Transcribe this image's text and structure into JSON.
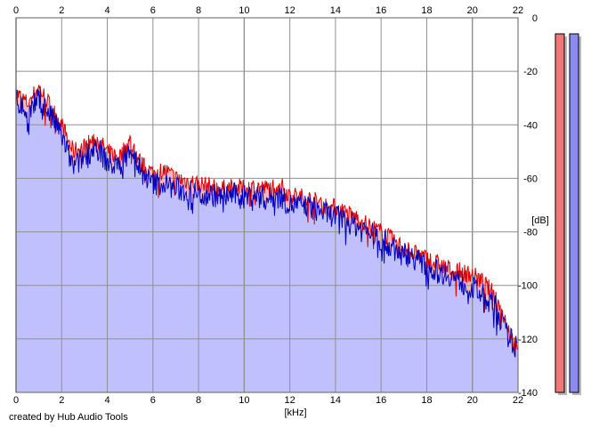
{
  "credit": "created by Hub Audio Tools",
  "chart_data": {
    "type": "area",
    "xlabel": "[kHz]",
    "ylabel": "[dB]",
    "xlim": [
      0,
      22
    ],
    "ylim": [
      -140,
      0
    ],
    "x_ticks": [
      "0",
      "2",
      "4",
      "6",
      "8",
      "10",
      "12",
      "14",
      "16",
      "18",
      "20",
      "22"
    ],
    "y_ticks": [
      "0",
      "-20",
      "-40",
      "-60",
      "-80",
      "-100",
      "-120",
      "-140"
    ],
    "grid": true,
    "colors": {
      "red": "#e00000",
      "blue": "#0000c0",
      "fill_blue": "#c0c0ff",
      "fill_red": "#f4b4c0",
      "meter_red": "#f07878",
      "meter_blue": "#8a8aef"
    },
    "series": [
      {
        "x": [
          0,
          0.5,
          1,
          1.5,
          2,
          2.5,
          3,
          3.5,
          4,
          4.5,
          5,
          5.5,
          6,
          6.5,
          7,
          7.5,
          8,
          8.5,
          9,
          9.5,
          10,
          10.5,
          11,
          11.5,
          12,
          12.5,
          13,
          13.5,
          14,
          14.5,
          15,
          15.5,
          16,
          16.5,
          17,
          17.5,
          18,
          18.5,
          19,
          19.5,
          20,
          20.5,
          21,
          21.5,
          22
        ],
        "y": [
          -28,
          -32,
          -26,
          -33,
          -40,
          -50,
          -48,
          -45,
          -50,
          -52,
          -46,
          -55,
          -58,
          -57,
          -60,
          -61,
          -62,
          -63,
          -64,
          -63,
          -64,
          -63,
          -64,
          -62,
          -66,
          -67,
          -68,
          -70,
          -71,
          -73,
          -75,
          -78,
          -80,
          -83,
          -86,
          -88,
          -90,
          -92,
          -94,
          -95,
          -96,
          -99,
          -104,
          -114,
          -126
        ]
      },
      {
        "x": [
          0,
          0.5,
          1,
          1.5,
          2,
          2.5,
          3,
          3.5,
          4,
          4.5,
          5,
          5.5,
          6,
          6.5,
          7,
          7.5,
          8,
          8.5,
          9,
          9.5,
          10,
          10.5,
          11,
          11.5,
          12,
          12.5,
          13,
          13.5,
          14,
          14.5,
          15,
          15.5,
          16,
          16.5,
          17,
          17.5,
          18,
          18.5,
          19,
          19.5,
          20,
          20.5,
          21,
          21.5,
          22
        ],
        "y": [
          -30,
          -36,
          -30,
          -36,
          -44,
          -56,
          -52,
          -48,
          -54,
          -56,
          -48,
          -58,
          -62,
          -62,
          -64,
          -65,
          -66,
          -66,
          -67,
          -66,
          -67,
          -66,
          -68,
          -66,
          -70,
          -70,
          -71,
          -73,
          -74,
          -76,
          -78,
          -80,
          -83,
          -86,
          -88,
          -90,
          -93,
          -95,
          -96,
          -99,
          -101,
          -104,
          -108,
          -118,
          -124
        ]
      }
    ],
    "meters": [
      {
        "name": "red-level-meter",
        "level_db": -4
      },
      {
        "name": "blue-level-meter",
        "level_db": -4
      }
    ]
  }
}
